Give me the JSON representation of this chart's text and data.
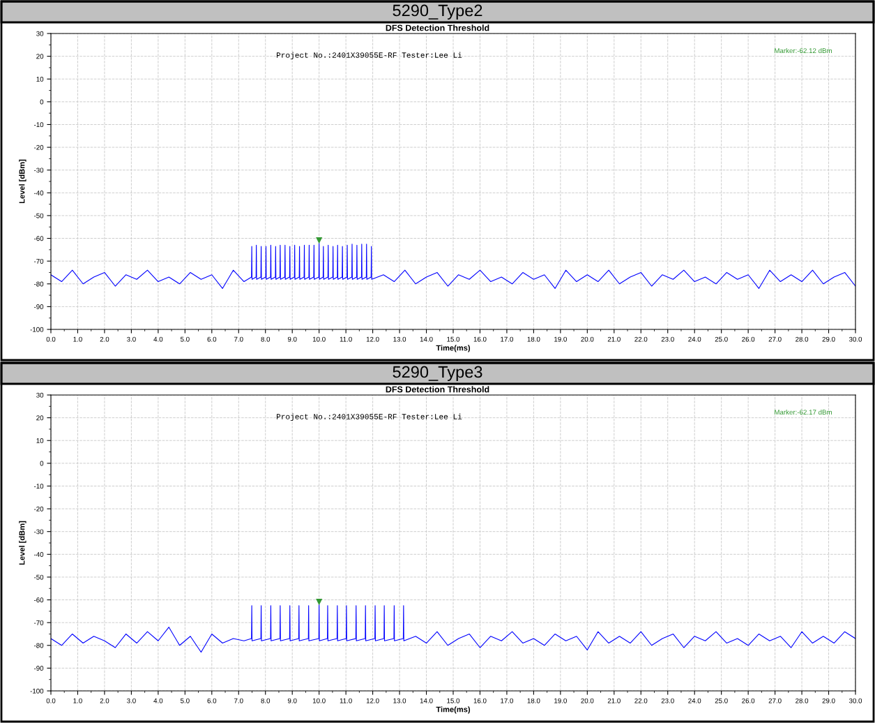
{
  "chart_data": [
    {
      "type": "line",
      "title": "5290_Type2",
      "subtitle": "DFS Detection Threshold",
      "xlabel": "Time(ms)",
      "ylabel": "Level [dBm]",
      "x": [
        0,
        0.4,
        0.8,
        1.2,
        1.6,
        2,
        2.4,
        2.8,
        3.2,
        3.6,
        4,
        4.4,
        4.8,
        5.2,
        5.6,
        6,
        6.4,
        6.8,
        7.2,
        7.48,
        7.49,
        7.5,
        7.65,
        7.66,
        7.67,
        7.83,
        7.84,
        7.85,
        8.01,
        8.02,
        8.03,
        8.19,
        8.2,
        8.21,
        8.37,
        8.38,
        8.39,
        8.54,
        8.55,
        8.56,
        8.72,
        8.73,
        8.74,
        8.9,
        8.91,
        8.92,
        9.08,
        9.09,
        9.1,
        9.26,
        9.27,
        9.28,
        9.44,
        9.45,
        9.46,
        9.62,
        9.63,
        9.64,
        9.8,
        9.81,
        9.82,
        9.99,
        10.0,
        10.01,
        10.15,
        10.16,
        10.17,
        10.33,
        10.34,
        10.35,
        10.51,
        10.52,
        10.53,
        10.68,
        10.69,
        10.7,
        10.86,
        10.87,
        10.88,
        11.04,
        11.05,
        11.06,
        11.22,
        11.23,
        11.24,
        11.4,
        11.41,
        11.42,
        11.58,
        11.59,
        11.6,
        11.76,
        11.77,
        11.78,
        11.94,
        11.95,
        11.96,
        12.4,
        12.8,
        13.2,
        13.6,
        14,
        14.4,
        14.8,
        15.2,
        15.6,
        16,
        16.4,
        16.8,
        17.2,
        17.6,
        18,
        18.4,
        18.8,
        19.2,
        19.6,
        20,
        20.4,
        20.8,
        21.2,
        21.6,
        22,
        22.4,
        22.8,
        23.2,
        23.6,
        24,
        24.4,
        24.8,
        25.2,
        25.6,
        26,
        26.4,
        26.8,
        27.2,
        27.6,
        28,
        28.4,
        28.8,
        29.2,
        29.6,
        30
      ],
      "series": [
        {
          "color": "#0000ff",
          "values": [
            -76,
            -79,
            -74,
            -80,
            -77,
            -75,
            -81,
            -76,
            -78,
            -74,
            -79,
            -77,
            -80,
            -75,
            -78,
            -76,
            -82,
            -74,
            -79,
            -77,
            -63.5,
            -78,
            -77,
            -63,
            -78,
            -77,
            -63.5,
            -78,
            -77,
            -63.5,
            -78,
            -77,
            -63,
            -78,
            -77,
            -63.5,
            -78,
            -77,
            -63,
            -78,
            -77,
            -63,
            -78,
            -77,
            -63.5,
            -78,
            -77,
            -63,
            -78,
            -77,
            -63.5,
            -78,
            -77,
            -63,
            -78,
            -77,
            -63,
            -78,
            -77,
            -63,
            -78,
            -77,
            -62,
            -78,
            -77,
            -63.5,
            -78,
            -77,
            -63,
            -78,
            -77,
            -63.5,
            -78,
            -77,
            -63,
            -78,
            -77,
            -63.5,
            -78,
            -77,
            -63,
            -78,
            -77,
            -62.5,
            -78,
            -77,
            -63,
            -78,
            -77,
            -62.5,
            -78,
            -77,
            -62.5,
            -78,
            -77,
            -63.5,
            -78,
            -76,
            -79,
            -74,
            -80,
            -77,
            -75,
            -81,
            -76,
            -78,
            -74,
            -79,
            -77,
            -80,
            -75,
            -78,
            -76,
            -82,
            -74,
            -79,
            -76,
            -79,
            -74,
            -80,
            -77,
            -75,
            -81,
            -76,
            -78,
            -74,
            -79,
            -77,
            -80,
            -75,
            -78,
            -76,
            -82,
            -74,
            -79,
            -76,
            -79,
            -74,
            -80,
            -77,
            -75,
            -81
          ]
        }
      ],
      "annotations": [
        "Project No.:2401X39055E-RF Tester:Lee Li",
        "Marker:-62.12 dBm"
      ],
      "xlim": [
        0,
        30
      ],
      "ylim": [
        -100,
        30
      ],
      "xticks": [
        {
          "value": 0,
          "label": "0.0"
        },
        {
          "value": 1,
          "label": "1.0"
        },
        {
          "value": 2,
          "label": "2.0"
        },
        {
          "value": 3,
          "label": "3.0"
        },
        {
          "value": 4,
          "label": "4.0"
        },
        {
          "value": 5,
          "label": "5.0"
        },
        {
          "value": 6,
          "label": "6.0"
        },
        {
          "value": 7,
          "label": "7.0"
        },
        {
          "value": 8,
          "label": "8.0"
        },
        {
          "value": 9,
          "label": "9.0"
        },
        {
          "value": 10,
          "label": "10.0"
        },
        {
          "value": 11,
          "label": "11.0"
        },
        {
          "value": 12,
          "label": "12.0"
        },
        {
          "value": 13,
          "label": "13.0"
        },
        {
          "value": 14,
          "label": "14.0"
        },
        {
          "value": 15,
          "label": "15.0"
        },
        {
          "value": 16,
          "label": "16.0"
        },
        {
          "value": 17,
          "label": "17.0"
        },
        {
          "value": 18,
          "label": "18.0"
        },
        {
          "value": 19,
          "label": "19.0"
        },
        {
          "value": 20,
          "label": "20.0"
        },
        {
          "value": 21,
          "label": "21.0"
        },
        {
          "value": 22,
          "label": "22.0"
        },
        {
          "value": 23,
          "label": "23.0"
        },
        {
          "value": 24,
          "label": "24.0"
        },
        {
          "value": 25,
          "label": "25.0"
        },
        {
          "value": 26,
          "label": "26.0"
        },
        {
          "value": 27,
          "label": "27.0"
        },
        {
          "value": 28,
          "label": "28.0"
        },
        {
          "value": 29,
          "label": "29.0"
        },
        {
          "value": 30,
          "label": "30.0"
        }
      ],
      "yticks": [
        30,
        20,
        10,
        0,
        -10,
        -20,
        -30,
        -40,
        -50,
        -60,
        -70,
        -80,
        -90,
        -100
      ],
      "grid": true
    },
    {
      "type": "line",
      "title": "5290_Type3",
      "subtitle": "DFS Detection Threshold",
      "xlabel": "Time(ms)",
      "ylabel": "Level [dBm]",
      "x": [
        0,
        0.4,
        0.8,
        1.2,
        1.6,
        2,
        2.4,
        2.8,
        3.2,
        3.6,
        4,
        4.4,
        4.8,
        5.2,
        5.6,
        6,
        6.4,
        6.8,
        7.2,
        7.48,
        7.49,
        7.5,
        7.83,
        7.84,
        7.85,
        8.19,
        8.2,
        8.21,
        8.54,
        8.55,
        8.56,
        8.9,
        8.91,
        8.92,
        9.24,
        9.25,
        9.26,
        9.6,
        9.61,
        9.62,
        9.99,
        10.0,
        10.01,
        10.31,
        10.32,
        10.33,
        10.67,
        10.68,
        10.69,
        11.01,
        11.02,
        11.03,
        11.37,
        11.38,
        11.39,
        11.72,
        11.73,
        11.74,
        12.08,
        12.09,
        12.1,
        12.42,
        12.43,
        12.44,
        12.79,
        12.8,
        12.81,
        13.14,
        13.15,
        13.16,
        13.6,
        14,
        14.4,
        14.8,
        15.2,
        15.6,
        16,
        16.4,
        16.8,
        17.2,
        17.6,
        18,
        18.4,
        18.8,
        19.2,
        19.6,
        20,
        20.4,
        20.8,
        21.2,
        21.6,
        22,
        22.4,
        22.8,
        23.2,
        23.6,
        24,
        24.4,
        24.8,
        25.2,
        25.6,
        26,
        26.4,
        26.8,
        27.2,
        27.6,
        28,
        28.4,
        28.8,
        29.2,
        29.6,
        30
      ],
      "series": [
        {
          "color": "#0000ff",
          "values": [
            -77,
            -80,
            -75,
            -79,
            -76,
            -78,
            -81,
            -75,
            -79,
            -74,
            -78,
            -72,
            -80,
            -76,
            -83,
            -75,
            -79,
            -77,
            -78,
            -77,
            -62.5,
            -78,
            -77,
            -62.5,
            -78,
            -77,
            -62.5,
            -78,
            -77,
            -62.5,
            -78,
            -77,
            -62.5,
            -78,
            -77,
            -62.5,
            -78,
            -77,
            -62.5,
            -78,
            -77,
            -62,
            -78,
            -77,
            -62.5,
            -78,
            -77,
            -62.5,
            -78,
            -77,
            -62.5,
            -78,
            -77,
            -62.5,
            -78,
            -77,
            -62.5,
            -78,
            -77,
            -62.5,
            -78,
            -77,
            -62.5,
            -78,
            -77,
            -62.5,
            -78,
            -77,
            -62.5,
            -78,
            -76,
            -79,
            -74,
            -80,
            -77,
            -75,
            -81,
            -76,
            -78,
            -74,
            -79,
            -77,
            -80,
            -75,
            -78,
            -76,
            -82,
            -74,
            -79,
            -76,
            -79,
            -74,
            -80,
            -77,
            -75,
            -81,
            -76,
            -78,
            -74,
            -79,
            -77,
            -80,
            -75,
            -78,
            -76,
            -81,
            -74,
            -79,
            -76,
            -79,
            -74,
            -77
          ]
        }
      ],
      "annotations": [
        "Project No.:2401X39055E-RF Tester:Lee Li",
        "Marker:-62.17 dBm"
      ],
      "xlim": [
        0,
        30
      ],
      "ylim": [
        -100,
        30
      ],
      "xticks": [
        {
          "value": 0,
          "label": "0.0"
        },
        {
          "value": 1,
          "label": "1.0"
        },
        {
          "value": 2,
          "label": "2.0"
        },
        {
          "value": 3,
          "label": "3.0"
        },
        {
          "value": 4,
          "label": "4.0"
        },
        {
          "value": 5,
          "label": "5.0"
        },
        {
          "value": 6,
          "label": "6.0"
        },
        {
          "value": 7,
          "label": "7.0"
        },
        {
          "value": 8,
          "label": "8.0"
        },
        {
          "value": 9,
          "label": "9.0"
        },
        {
          "value": 10,
          "label": "10.0"
        },
        {
          "value": 11,
          "label": "11.0"
        },
        {
          "value": 12,
          "label": "12.0"
        },
        {
          "value": 13,
          "label": "13.0"
        },
        {
          "value": 14,
          "label": "14.0"
        },
        {
          "value": 15,
          "label": "15.0"
        },
        {
          "value": 16,
          "label": "16.0"
        },
        {
          "value": 17,
          "label": "17.0"
        },
        {
          "value": 18,
          "label": "18.0"
        },
        {
          "value": 19,
          "label": "19.0"
        },
        {
          "value": 20,
          "label": "20.0"
        },
        {
          "value": 21,
          "label": "21.0"
        },
        {
          "value": 22,
          "label": "22.0"
        },
        {
          "value": 23,
          "label": "23.0"
        },
        {
          "value": 24,
          "label": "24.0"
        },
        {
          "value": 25,
          "label": "25.0"
        },
        {
          "value": 26,
          "label": "26.0"
        },
        {
          "value": 27,
          "label": "27.0"
        },
        {
          "value": 28,
          "label": "28.0"
        },
        {
          "value": 29,
          "label": "29.0"
        },
        {
          "value": 30,
          "label": "30.0"
        }
      ],
      "yticks": [
        30,
        20,
        10,
        0,
        -10,
        -20,
        -30,
        -40,
        -50,
        -60,
        -70,
        -80,
        -90,
        -100
      ],
      "grid": true
    }
  ]
}
